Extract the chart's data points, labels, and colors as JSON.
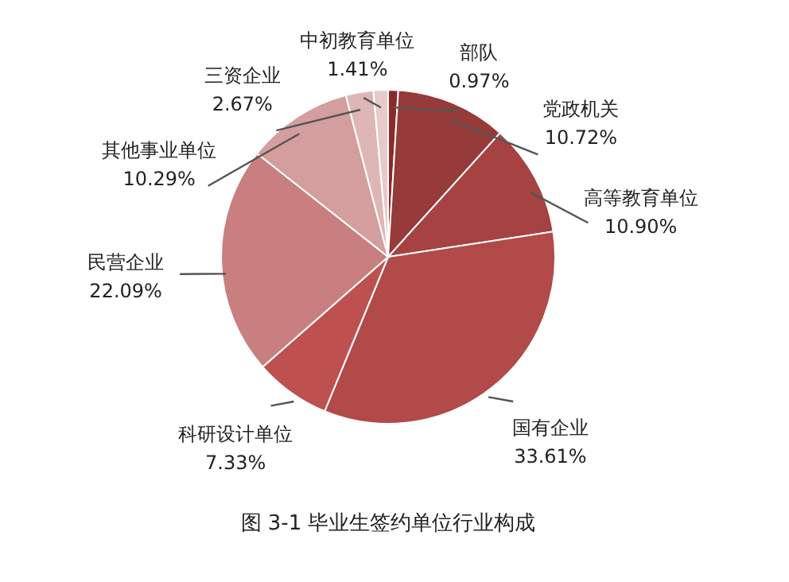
{
  "chart_data": {
    "type": "pie",
    "title": "图 3-1  毕业生签约单位行业构成",
    "categories": [
      "部队",
      "党政机关",
      "高等教育单位",
      "国有企业",
      "科研设计单位",
      "民营企业",
      "其他事业单位",
      "三资企业",
      "中初教育单位"
    ],
    "values": [
      0.97,
      10.72,
      10.9,
      33.61,
      7.33,
      22.09,
      10.29,
      2.67,
      1.41
    ],
    "value_labels": [
      "0.97%",
      "10.72%",
      "10.90%",
      "33.61%",
      "7.33%",
      "22.09%",
      "10.29%",
      "2.67%",
      "1.41%"
    ],
    "colors": [
      "#8c2a2a",
      "#963a3a",
      "#a64242",
      "#b24a4a",
      "#bf5050",
      "#c97f7f",
      "#d49e9e",
      "#dfb6b6",
      "#e8caca"
    ]
  }
}
